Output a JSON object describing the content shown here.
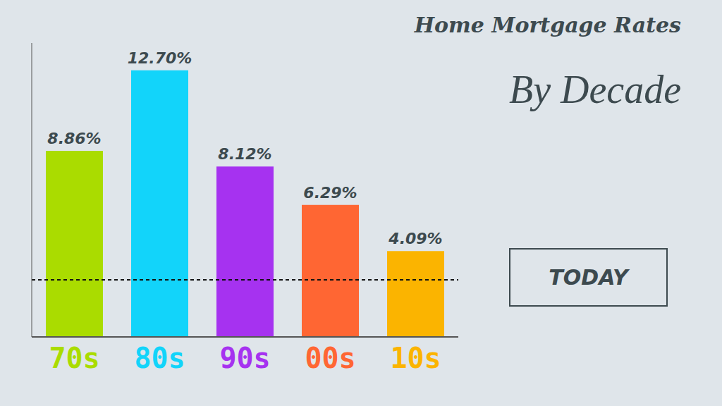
{
  "chart_data": {
    "type": "bar",
    "title": "Home Mortgage Rates",
    "subtitle": "By Decade",
    "categories": [
      "70s",
      "80s",
      "90s",
      "00s",
      "10s"
    ],
    "values": [
      8.86,
      12.7,
      8.12,
      6.29,
      4.09
    ],
    "value_labels": [
      "8.86%",
      "12.70%",
      "8.12%",
      "6.29%",
      "4.09%"
    ],
    "colors": [
      "#aadc00",
      "#12d4fa",
      "#a632f0",
      "#ff6633",
      "#fbb400"
    ],
    "ylim": [
      0,
      14
    ],
    "grid": false,
    "data_labels": true,
    "tick_labels": "x",
    "annotations": [
      {
        "text": "TODAY",
        "y": 2.72,
        "line_style": "dashed"
      }
    ]
  }
}
